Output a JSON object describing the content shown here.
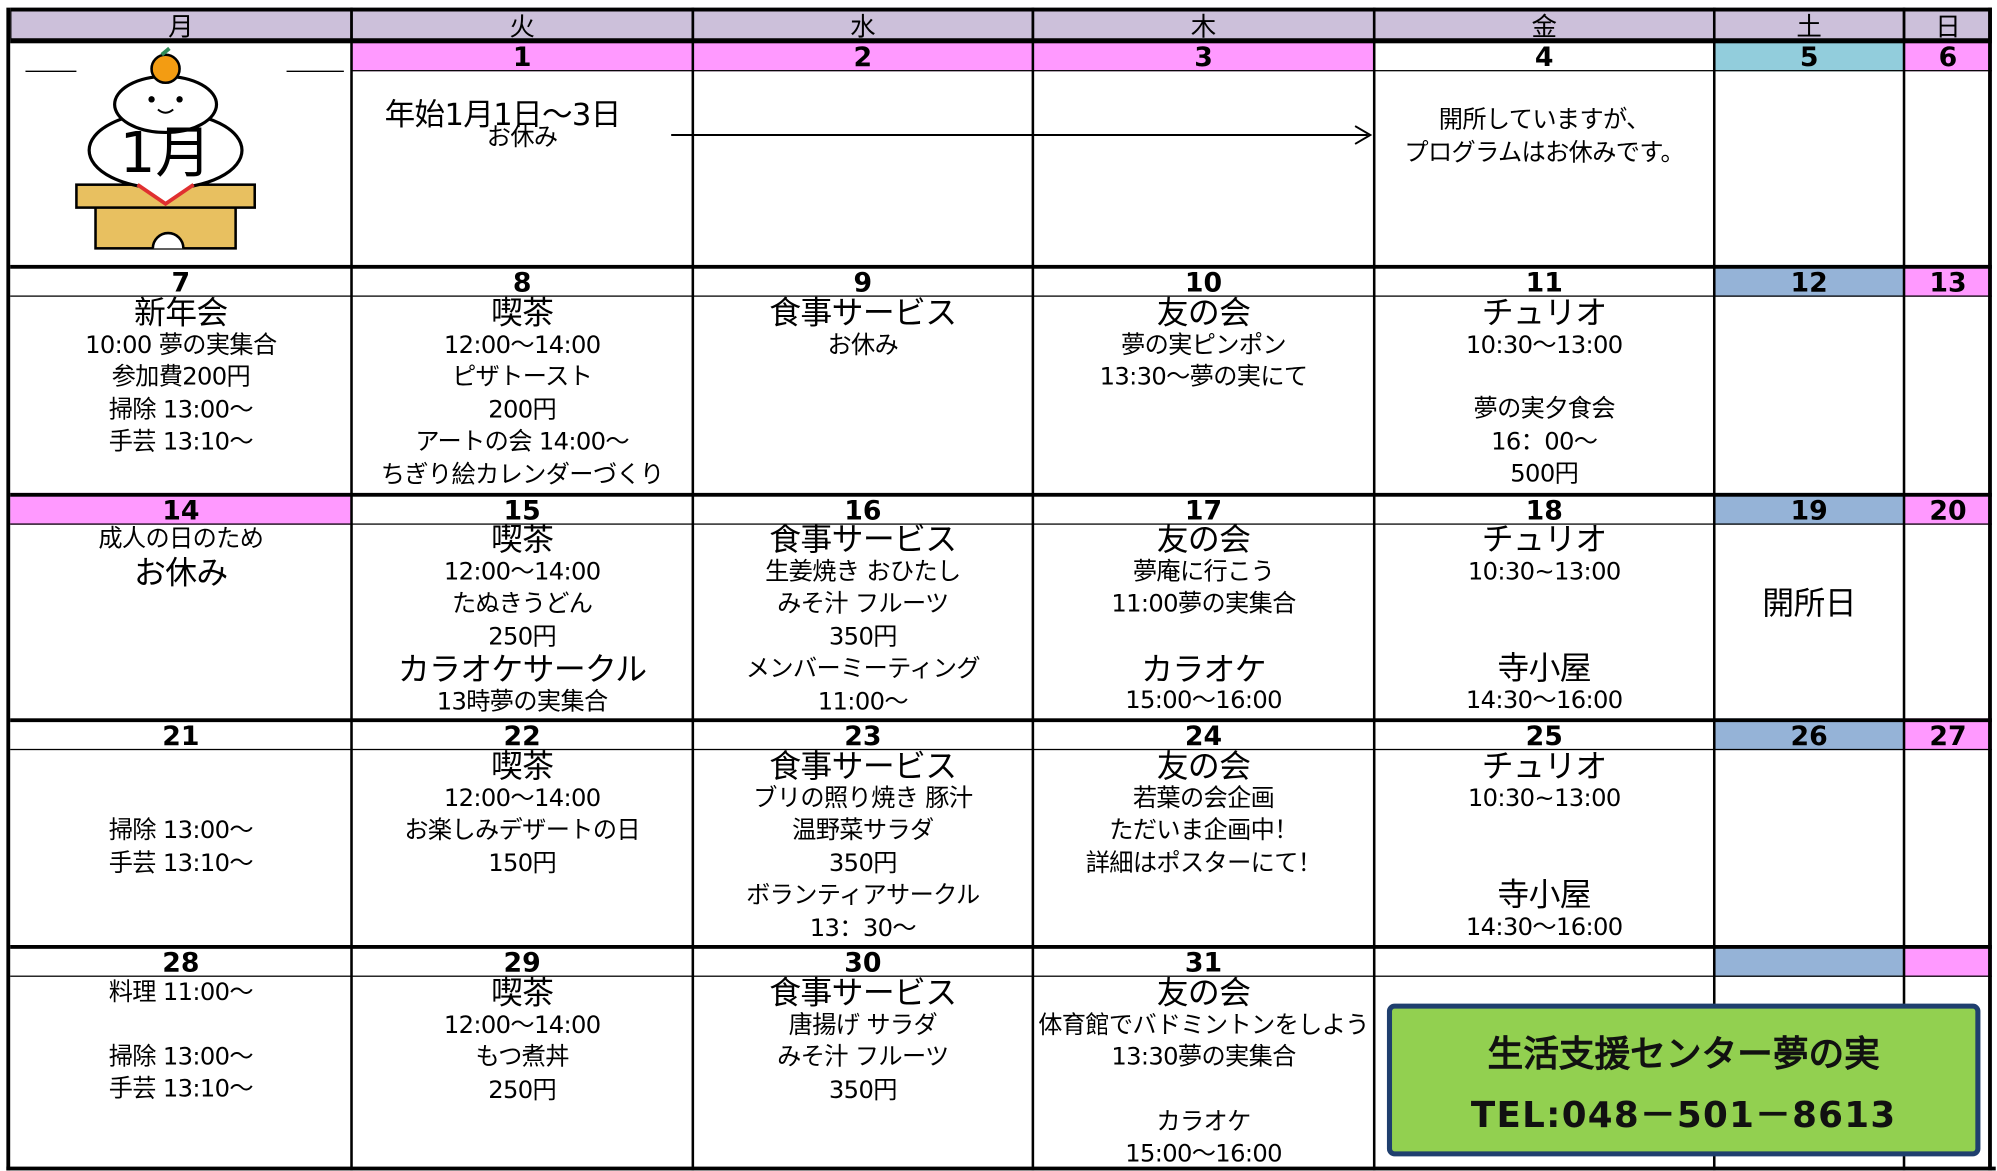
{
  "header": {
    "days": [
      "月",
      "火",
      "水",
      "木",
      "金",
      "土",
      "日"
    ]
  },
  "month_label": "1月",
  "banner": {
    "title": "生活支援センター夢の実",
    "tel": "TEL:048－501－8613"
  },
  "weeks": [
    {
      "days": [
        {},
        {
          "date": "1",
          "color": "#ff99ff",
          "lines": [
            "年始1月1日～3日",
            "お休み"
          ]
        },
        {
          "date": "2",
          "color": "#ff99ff"
        },
        {
          "date": "3",
          "color": "#ff99ff"
        },
        {
          "date": "4",
          "lines": [
            "開所していますが、",
            "プログラムはお休みです。"
          ]
        },
        {
          "date": "5",
          "color": "#92cddc"
        },
        {
          "date": "6",
          "color": "#ff99ff"
        }
      ]
    },
    {
      "days": [
        {
          "date": "7",
          "lines": [
            "新年会",
            "10:00 夢の実集合",
            "参加費200円",
            "掃除 13:00～",
            "手芸 13:10～"
          ]
        },
        {
          "date": "8",
          "lines": [
            "喫茶",
            "12:00～14:00",
            "ピザトースト",
            "200円",
            "アートの会 14:00～",
            "ちぎり絵カレンダーづくり"
          ]
        },
        {
          "date": "9",
          "lines": [
            "食事サービス",
            "お休み"
          ]
        },
        {
          "date": "10",
          "lines": [
            "友の会",
            "夢の実ピンポン",
            "13:30～夢の実にて"
          ]
        },
        {
          "date": "11",
          "lines": [
            "チュリオ",
            "10:30～13:00",
            "夢の実夕食会",
            "16：00～",
            "500円"
          ]
        },
        {
          "date": "12",
          "color": "#95b3d7"
        },
        {
          "date": "13",
          "color": "#ff99ff"
        }
      ]
    },
    {
      "days": [
        {
          "date": "14",
          "color": "#ff99ff",
          "lines": [
            "成人の日のため",
            "お休み"
          ]
        },
        {
          "date": "15",
          "lines": [
            "喫茶",
            "12:00～14:00",
            "たぬきうどん",
            "250円",
            "カラオケサークル",
            "13時夢の実集合"
          ]
        },
        {
          "date": "16",
          "lines": [
            "食事サービス",
            "生姜焼き おひたし",
            "みそ汁 フルーツ",
            "350円",
            "メンバーミーティング",
            "11:00～"
          ]
        },
        {
          "date": "17",
          "lines": [
            "友の会",
            "夢庵に行こう",
            "11:00夢の実集合",
            "カラオケ",
            "15:00～16:00"
          ]
        },
        {
          "date": "18",
          "lines": [
            "チュリオ",
            "10:30~13:00",
            "寺小屋",
            "14:30～16:00"
          ]
        },
        {
          "date": "19",
          "color": "#95b3d7",
          "lines": [
            "開所日"
          ]
        },
        {
          "date": "20",
          "color": "#ff99ff"
        }
      ]
    },
    {
      "days": [
        {
          "date": "21",
          "lines": [
            "掃除 13:00～",
            "手芸 13:10～"
          ]
        },
        {
          "date": "22",
          "lines": [
            "喫茶",
            "12:00～14:00",
            "お楽しみデザートの日",
            "150円"
          ]
        },
        {
          "date": "23",
          "lines": [
            "食事サービス",
            "ブリの照り焼き 豚汁",
            "温野菜サラダ",
            "350円",
            "ボランティアサークル",
            "13：30～"
          ]
        },
        {
          "date": "24",
          "lines": [
            "友の会",
            "若葉の会企画",
            "ただいま企画中！",
            "詳細はポスターにて！"
          ]
        },
        {
          "date": "25",
          "lines": [
            "チュリオ",
            "10:30~13:00",
            "寺小屋",
            "14:30～16:00"
          ]
        },
        {
          "date": "26",
          "color": "#95b3d7"
        },
        {
          "date": "27",
          "color": "#ff99ff"
        }
      ]
    },
    {
      "days": [
        {
          "date": "28",
          "lines": [
            "料理 11:00～",
            "掃除 13:00～",
            "手芸 13:10～"
          ]
        },
        {
          "date": "29",
          "lines": [
            "喫茶",
            "12:00～14:00",
            "もつ煮丼",
            "250円"
          ]
        },
        {
          "date": "30",
          "lines": [
            "食事サービス",
            "唐揚げ サラダ",
            "みそ汁 フルーツ",
            "350円"
          ]
        },
        {
          "date": "31",
          "lines": [
            "友の会",
            "体育館でバドミントンをしよう",
            "13:30夢の実集合",
            "カラオケ",
            "15:00～16:00"
          ]
        },
        {},
        {
          "color": "#95b3d7"
        },
        {
          "color": "#ff99ff"
        }
      ]
    }
  ]
}
